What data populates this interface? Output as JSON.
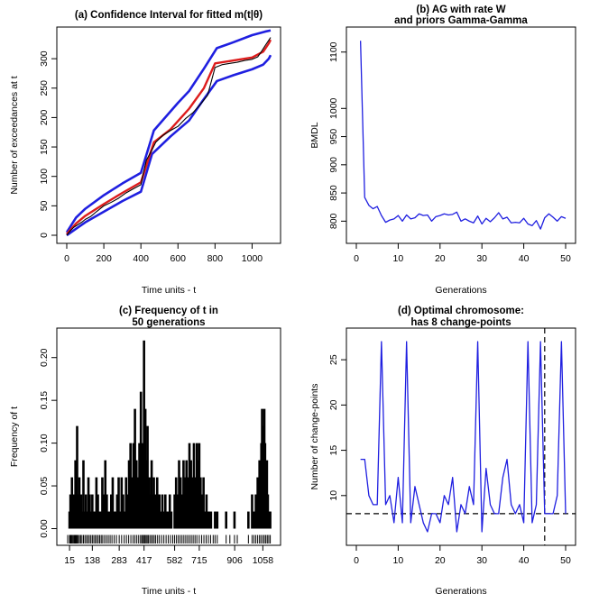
{
  "chart_data": [
    {
      "id": "a",
      "type": "line",
      "title": "(a) Confidence Interval for fitted m(t|θ)",
      "xlabel": "Time units - t",
      "ylabel": "Number of exceedances at t",
      "xlim": [
        0,
        1100
      ],
      "ylim": [
        0,
        340
      ],
      "xticks": [
        0,
        200,
        400,
        600,
        800,
        1000
      ],
      "yticks": [
        0,
        50,
        100,
        150,
        200,
        250,
        300
      ],
      "colors": {
        "observed": "#000000",
        "fitted": "#dd1c1c",
        "bounds": "#1f1fe0"
      },
      "series": [
        {
          "name": "upper bound",
          "color": "#1f1fe0",
          "width": 2.6,
          "x": [
            0,
            50,
            100,
            200,
            300,
            400,
            470,
            600,
            660,
            740,
            810,
            900,
            1000,
            1070,
            1100
          ],
          "y": [
            5,
            30,
            45,
            68,
            88,
            106,
            178,
            225,
            245,
            283,
            318,
            328,
            340,
            346,
            348
          ]
        },
        {
          "name": "lower bound",
          "color": "#1f1fe0",
          "width": 2.6,
          "x": [
            0,
            100,
            200,
            300,
            400,
            460,
            560,
            660,
            730,
            810,
            900,
            1000,
            1060,
            1090,
            1100
          ],
          "y": [
            0,
            22,
            40,
            58,
            74,
            138,
            168,
            195,
            227,
            262,
            272,
            282,
            290,
            300,
            306
          ]
        },
        {
          "name": "fitted m(t|θ)",
          "color": "#dd1c1c",
          "width": 2.4,
          "x": [
            0,
            50,
            100,
            200,
            300,
            400,
            470,
            560,
            660,
            740,
            800,
            900,
            1000,
            1060,
            1090,
            1100
          ],
          "y": [
            2,
            20,
            33,
            53,
            72,
            90,
            158,
            180,
            215,
            250,
            292,
            297,
            302,
            312,
            326,
            332
          ]
        },
        {
          "name": "observed",
          "color": "#000000",
          "width": 1.1,
          "x": [
            0,
            20,
            40,
            60,
            80,
            100,
            130,
            160,
            200,
            240,
            280,
            320,
            360,
            400,
            415,
            430,
            460,
            480,
            520,
            560,
            600,
            640,
            680,
            720,
            760,
            800,
            840,
            880,
            920,
            960,
            1000,
            1030,
            1050,
            1070,
            1085,
            1100
          ],
          "y": [
            0,
            8,
            14,
            18,
            22,
            27,
            32,
            40,
            50,
            56,
            63,
            72,
            79,
            86,
            108,
            128,
            145,
            158,
            170,
            178,
            185,
            198,
            208,
            222,
            238,
            285,
            290,
            292,
            294,
            297,
            299,
            303,
            312,
            322,
            329,
            336
          ]
        }
      ]
    },
    {
      "id": "b",
      "type": "line",
      "title": "(b) AG with rate W",
      "subtitle": "and priors Gamma-Gamma",
      "xlabel": "Generations",
      "ylabel": "BMDL",
      "xlim": [
        0,
        50
      ],
      "ylim": [
        775,
        1130
      ],
      "xticks": [
        0,
        10,
        20,
        30,
        40,
        50
      ],
      "yticks": [
        800,
        850,
        900,
        950,
        1000,
        1100
      ],
      "color": "#1f1fe0",
      "x": [
        1,
        2,
        3,
        4,
        5,
        6,
        7,
        8,
        9,
        10,
        11,
        12,
        13,
        14,
        15,
        16,
        17,
        18,
        19,
        20,
        21,
        22,
        23,
        24,
        25,
        26,
        27,
        28,
        29,
        30,
        31,
        32,
        33,
        34,
        35,
        36,
        37,
        38,
        39,
        40,
        41,
        42,
        43,
        44,
        45,
        46,
        47,
        48,
        49,
        50
      ],
      "y": [
        1120,
        842,
        828,
        822,
        826,
        810,
        798,
        802,
        804,
        810,
        800,
        811,
        804,
        806,
        813,
        810,
        811,
        800,
        808,
        810,
        813,
        811,
        812,
        816,
        800,
        804,
        800,
        797,
        809,
        795,
        805,
        799,
        806,
        815,
        804,
        807,
        797,
        798,
        797,
        805,
        795,
        792,
        801,
        786,
        806,
        813,
        807,
        800,
        808,
        805
      ]
    },
    {
      "id": "c",
      "type": "bar",
      "title": "(c) Frequency of t in",
      "subtitle": "50 generations",
      "xlabel": "Time units - t",
      "ylabel": "Frequency of t",
      "xlim": [
        0,
        1100
      ],
      "ylim": [
        -0.01,
        0.225
      ],
      "xticks": [
        15,
        138,
        283,
        417,
        582,
        715,
        906,
        1058
      ],
      "yticks": [
        0,
        0.05,
        0.1,
        0.15,
        0.2
      ],
      "ytick_labels": [
        "0.00",
        "0.05",
        "0.10",
        "0.15",
        "0.20"
      ],
      "color": "#000000",
      "x": [
        15,
        20,
        24,
        28,
        33,
        38,
        42,
        47,
        52,
        56,
        60,
        64,
        68,
        72,
        78,
        84,
        90,
        96,
        103,
        110,
        117,
        124,
        131,
        138,
        145,
        152,
        160,
        168,
        176,
        184,
        192,
        200,
        208,
        216,
        224,
        232,
        240,
        248,
        256,
        264,
        272,
        280,
        288,
        296,
        304,
        312,
        320,
        328,
        336,
        344,
        352,
        360,
        368,
        376,
        384,
        392,
        400,
        405,
        410,
        414,
        417,
        420,
        424,
        428,
        432,
        436,
        440,
        446,
        452,
        458,
        464,
        470,
        476,
        482,
        488,
        494,
        500,
        508,
        516,
        524,
        532,
        540,
        548,
        556,
        564,
        582,
        590,
        598,
        606,
        614,
        622,
        630,
        638,
        646,
        654,
        662,
        670,
        678,
        686,
        694,
        702,
        708,
        715,
        722,
        730,
        738,
        746,
        754,
        762,
        770,
        778,
        800,
        812,
        860,
        905,
        980,
        1000,
        1010,
        1020,
        1030,
        1040,
        1045,
        1050,
        1054,
        1058,
        1062,
        1066,
        1070,
        1075,
        1080,
        1085,
        1090,
        1094,
        1098
      ],
      "y": [
        0.02,
        0.04,
        0.02,
        0.06,
        0.02,
        0.04,
        0.02,
        0.08,
        0.06,
        0.12,
        0.04,
        0.02,
        0.06,
        0.02,
        0.04,
        0.02,
        0.08,
        0.02,
        0.04,
        0.02,
        0.06,
        0.04,
        0.02,
        0.04,
        0.02,
        0.02,
        0.06,
        0.04,
        0.02,
        0.02,
        0.06,
        0.04,
        0.08,
        0.04,
        0.02,
        0.02,
        0.04,
        0.06,
        0.02,
        0.02,
        0.04,
        0.06,
        0.02,
        0.06,
        0.04,
        0.02,
        0.06,
        0.04,
        0.08,
        0.1,
        0.06,
        0.1,
        0.14,
        0.08,
        0.06,
        0.1,
        0.16,
        0.1,
        0.06,
        0.08,
        0.22,
        0.1,
        0.14,
        0.08,
        0.06,
        0.12,
        0.04,
        0.06,
        0.04,
        0.08,
        0.04,
        0.06,
        0.04,
        0.02,
        0.06,
        0.04,
        0.04,
        0.02,
        0.04,
        0.02,
        0.04,
        0.02,
        0.02,
        0.04,
        0.02,
        0.04,
        0.06,
        0.04,
        0.08,
        0.06,
        0.04,
        0.08,
        0.06,
        0.08,
        0.06,
        0.1,
        0.08,
        0.06,
        0.1,
        0.06,
        0.1,
        0.08,
        0.1,
        0.06,
        0.04,
        0.06,
        0.02,
        0.04,
        0.02,
        0.02,
        0.02,
        0.02,
        0.02,
        0.02,
        0.02,
        0.02,
        0.04,
        0.02,
        0.04,
        0.06,
        0.08,
        0.06,
        0.1,
        0.14,
        0.08,
        0.12,
        0.14,
        0.1,
        0.06,
        0.08,
        0.04,
        0.02,
        0.02,
        0.02
      ],
      "rug_x": [
        5,
        15,
        18,
        22,
        26,
        30,
        35,
        40,
        44,
        48,
        52,
        56,
        62,
        68,
        75,
        82,
        90,
        98,
        106,
        114,
        122,
        130,
        138,
        146,
        154,
        162,
        170,
        178,
        186,
        194,
        204,
        214,
        224,
        234,
        244,
        256,
        268,
        283,
        296,
        310,
        322,
        334,
        346,
        358,
        368,
        378,
        388,
        398,
        405,
        410,
        417,
        422,
        428,
        434,
        440,
        448,
        456,
        464,
        472,
        480,
        490,
        500,
        512,
        524,
        536,
        548,
        560,
        572,
        582,
        592,
        602,
        612,
        622,
        632,
        642,
        652,
        662,
        672,
        682,
        692,
        702,
        715,
        728,
        740,
        752,
        764,
        776,
        790,
        800,
        812,
        860,
        880,
        905,
        920,
        980,
        1000,
        1010,
        1020,
        1030,
        1040,
        1048,
        1058,
        1066,
        1074,
        1082,
        1090,
        1098
      ]
    },
    {
      "id": "d",
      "type": "line",
      "title": "(d) Optimal chromosome:",
      "subtitle": "has 8 change-points",
      "xlabel": "Generations",
      "ylabel": "Number of change-points",
      "xlim": [
        0,
        50
      ],
      "ylim": [
        5.4,
        27.6
      ],
      "xticks": [
        0,
        10,
        20,
        30,
        40,
        50
      ],
      "yticks": [
        10,
        15,
        20,
        25
      ],
      "color": "#1f1fe0",
      "hline_y": 8,
      "vline_x": 45,
      "x": [
        1,
        2,
        3,
        4,
        5,
        6,
        7,
        8,
        9,
        10,
        11,
        12,
        13,
        14,
        15,
        16,
        17,
        18,
        19,
        20,
        21,
        22,
        23,
        24,
        25,
        26,
        27,
        28,
        29,
        30,
        31,
        32,
        33,
        34,
        35,
        36,
        37,
        38,
        39,
        40,
        41,
        42,
        43,
        44,
        45,
        46,
        47,
        48,
        49,
        50
      ],
      "y": [
        14,
        14,
        10,
        9,
        9,
        27,
        9,
        10,
        7,
        12,
        7,
        27,
        7,
        11,
        9,
        7,
        6,
        8,
        8,
        7,
        10,
        9,
        12,
        6,
        9,
        8,
        11,
        9,
        27,
        6,
        13,
        9,
        8,
        8,
        12,
        14,
        9,
        8,
        9,
        7,
        27,
        7,
        9,
        27,
        8,
        8,
        8,
        10,
        27,
        8
      ]
    }
  ]
}
